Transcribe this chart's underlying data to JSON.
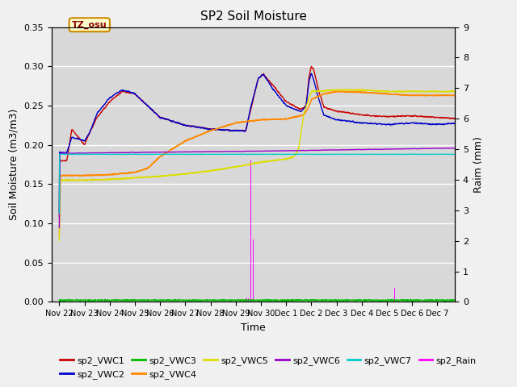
{
  "title": "SP2 Soil Moisture",
  "xlabel": "Time",
  "ylabel_left": "Soil Moisture (m3/m3)",
  "ylabel_right": "Raim (mm)",
  "ylim_left": [
    0.0,
    0.35
  ],
  "ylim_right": [
    0.0,
    9.0
  ],
  "yticks_left": [
    0.0,
    0.05,
    0.1,
    0.15,
    0.2,
    0.25,
    0.3,
    0.35
  ],
  "yticks_right": [
    0.0,
    1.0,
    2.0,
    3.0,
    4.0,
    5.0,
    6.0,
    7.0,
    8.0,
    9.0
  ],
  "xtick_labels": [
    "Nov 22",
    "Nov 23",
    "Nov 24",
    "Nov 25",
    "Nov 26",
    "Nov 27",
    "Nov 28",
    "Nov 29",
    "Nov 30",
    "Dec 1",
    "Dec 2",
    "Dec 3",
    "Dec 4",
    "Dec 5",
    "Dec 6",
    "Dec 7"
  ],
  "annotation_text": "TZ_osu",
  "bg_color": "#d8d8d8",
  "colors": {
    "VWC1": "#cc0000",
    "VWC2": "#0000cc",
    "VWC3": "#00bb00",
    "VWC4": "#ff8800",
    "VWC5": "#dddd00",
    "VWC6": "#9900cc",
    "VWC7": "#00cccc",
    "Rain": "#ff00ff"
  },
  "legend_labels": [
    "sp2_VWC1",
    "sp2_VWC2",
    "sp2_VWC3",
    "sp2_VWC4",
    "sp2_VWC5",
    "sp2_VWC6",
    "sp2_VWC7",
    "sp2_Rain"
  ]
}
